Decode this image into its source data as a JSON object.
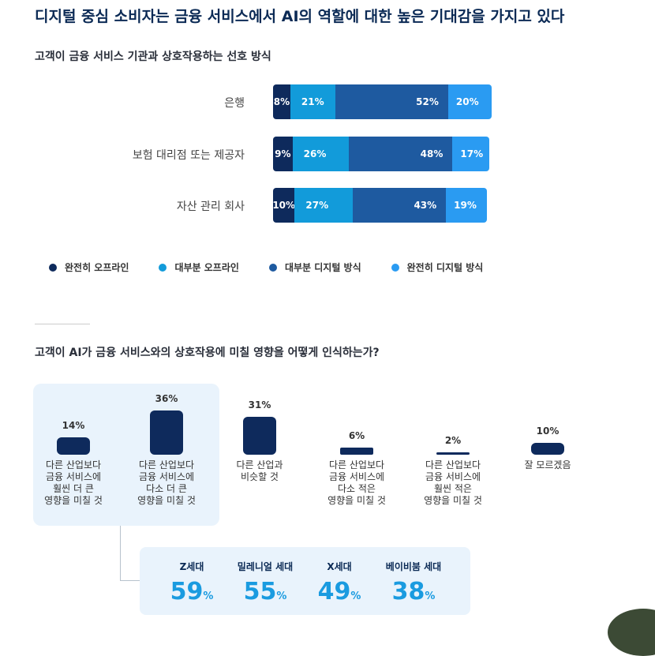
{
  "title": "디지털 중심 소비자는 금융 서비스에서 AI의 역할에 대한 높은 기대감을 가지고 있다",
  "chart_data": [
    {
      "type": "bar",
      "orientation": "horizontal",
      "stacked": true,
      "title": "고객이 금융 서비스 기관과 상호작용하는 선호 방식",
      "categories": [
        "은행",
        "보험 대리점 또는 제공자",
        "자산 관리 회사"
      ],
      "series": [
        {
          "name": "완전히 오프라인",
          "color": "#0e2a5c",
          "values": [
            8,
            9,
            10
          ],
          "labels": [
            "8%",
            "9%",
            "10%"
          ]
        },
        {
          "name": "대부분 오프라인",
          "color": "#129bda",
          "values": [
            21,
            26,
            27
          ],
          "labels": [
            "21%",
            "26%",
            "27%"
          ]
        },
        {
          "name": "대부분 디지털 방식",
          "color": "#1e5aa0",
          "values": [
            52,
            48,
            43
          ],
          "labels": [
            "52%",
            "48%",
            "43%"
          ]
        },
        {
          "name": "완전히 디지털 방식",
          "color": "#2a9bf2",
          "values": [
            20,
            17,
            19
          ],
          "labels": [
            "20%",
            "17%",
            "19%"
          ]
        }
      ],
      "legend_position": "bottom"
    },
    {
      "type": "bar",
      "title": "고객이 AI가 금융 서비스와의 상호작용에 미칠 영향을 어떻게 인식하는가?",
      "categories": [
        "다른 산업보다\n금융 서비스에\n훨씬 더 큰\n영향을 미칠 것",
        "다른 산업보다\n금융 서비스에\n다소 더 큰\n영향을 미칠 것",
        "다른 산업과\n비슷할 것",
        "다른 산업보다\n금융 서비스에\n다소 적은\n영향을 미칠 것",
        "다른 산업보다\n금융 서비스에\n훨씬 적은\n영향을 미칠 것",
        "잘 모르겠음"
      ],
      "values": [
        14,
        36,
        31,
        6,
        2,
        10
      ],
      "value_labels": [
        "14%",
        "36%",
        "31%",
        "6%",
        "2%",
        "10%"
      ],
      "color": "#0e2a5c",
      "ylim": [
        0,
        36
      ]
    }
  ],
  "generations": [
    {
      "label": "Z세대",
      "value": "59",
      "unit": "%"
    },
    {
      "label": "밀레니얼 세대",
      "value": "55",
      "unit": "%"
    },
    {
      "label": "X세대",
      "value": "49",
      "unit": "%"
    },
    {
      "label": "베이비붐 세대",
      "value": "38",
      "unit": "%"
    }
  ]
}
